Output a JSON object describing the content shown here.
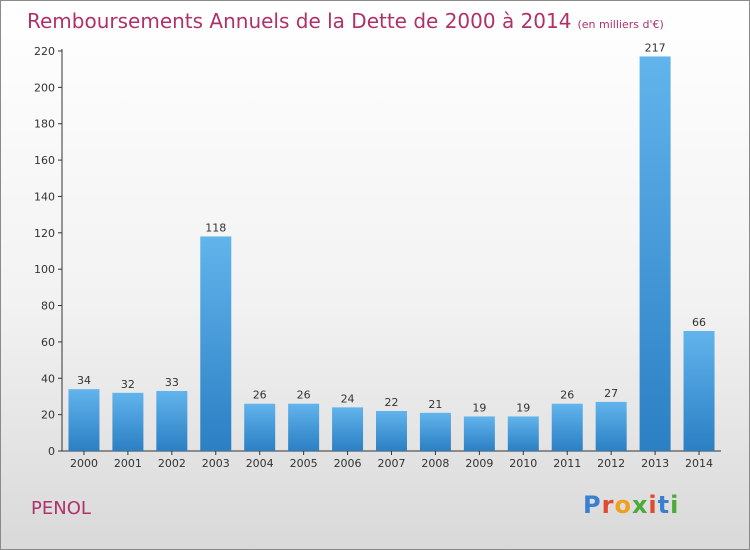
{
  "title": "Remboursements Annuels de la Dette de 2000 à 2014",
  "subtitle": "(en milliers d'€)",
  "commune": "PENOL",
  "logo": [
    "P",
    "r",
    "o",
    "x",
    "i",
    "t",
    "i"
  ],
  "colors": {
    "title": "#b0316a",
    "bar_top": "#62b4ec",
    "bar_bottom": "#2b7fc3",
    "logo": [
      "#3a7fd0",
      "#e04a2f",
      "#f0a020",
      "#4aab3a",
      "#e04a2f",
      "#3a7fd0",
      "#4aab3a"
    ]
  },
  "chart_data": {
    "type": "bar",
    "title": "Remboursements Annuels de la Dette de 2000 à 2014",
    "subtitle": "(en milliers d'€)",
    "xlabel": "",
    "ylabel": "",
    "categories": [
      "2000",
      "2001",
      "2002",
      "2003",
      "2004",
      "2005",
      "2006",
      "2007",
      "2008",
      "2009",
      "2010",
      "2011",
      "2012",
      "2013",
      "2014"
    ],
    "values": [
      34,
      32,
      33,
      118,
      26,
      26,
      24,
      22,
      21,
      19,
      19,
      26,
      27,
      217,
      66
    ],
    "ylim": [
      0,
      220
    ],
    "yticks": [
      0,
      20,
      40,
      60,
      80,
      100,
      120,
      140,
      160,
      180,
      200,
      220
    ],
    "grid": false,
    "legend": "none"
  }
}
